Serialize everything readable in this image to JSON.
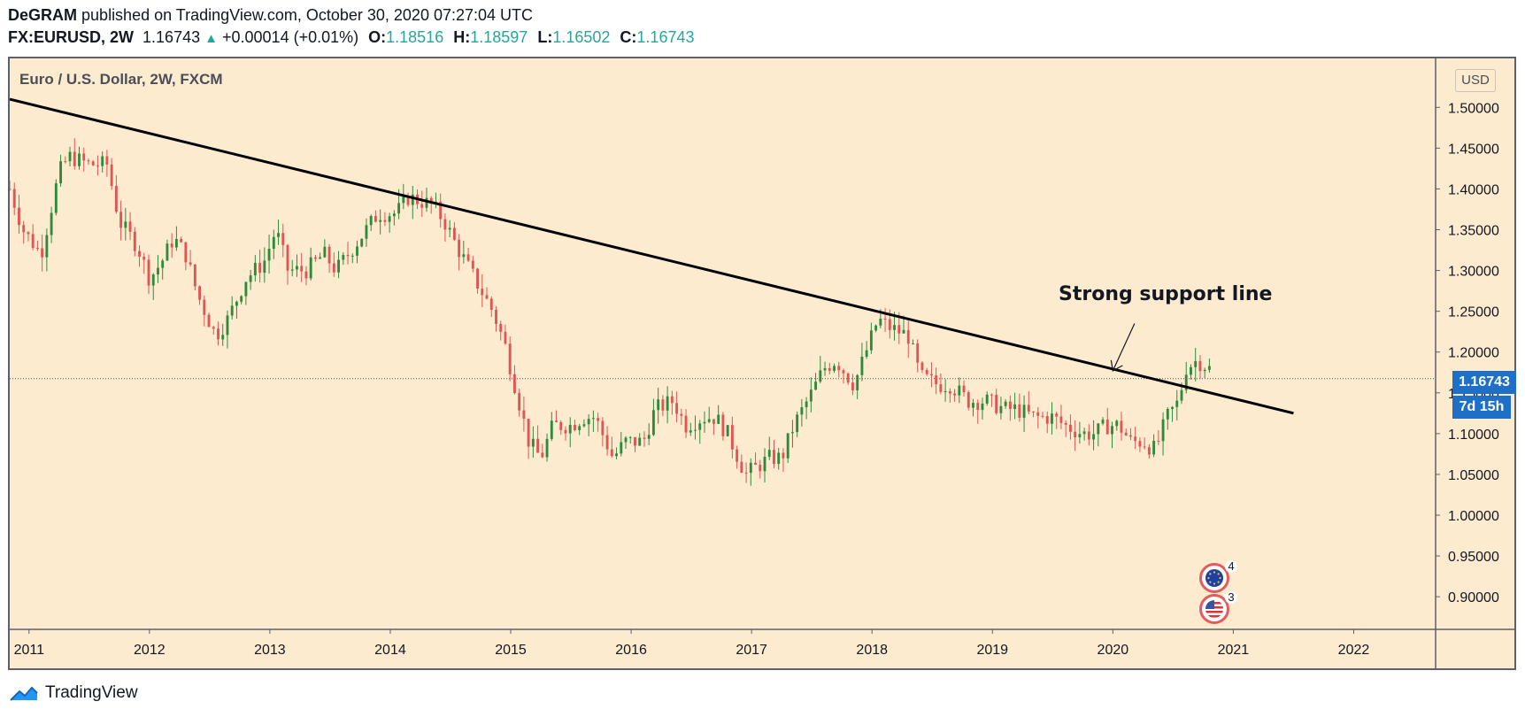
{
  "header": {
    "author": "DeGRAM",
    "published_text": "published on TradingView.com, October 30, 2020 07:27:04 UTC",
    "symbol": "FX:EURUSD, 2W",
    "last": "1.16743",
    "change": "+0.00014 (+0.01%)",
    "open_label": "O:",
    "open": "1.18516",
    "high_label": "H:",
    "high": "1.18597",
    "low_label": "L:",
    "low": "1.16502",
    "close_label": "C:",
    "close": "1.16743"
  },
  "plot_title": "Euro / U.S. Dollar, 2W, FXCM",
  "currency_badge": "USD",
  "price_badge": "1.16743",
  "countdown_badge": "7d 15h",
  "annotation": "Strong support line",
  "events": [
    {
      "icon": "eu-flag-icon",
      "count": "4"
    },
    {
      "icon": "us-flag-icon",
      "count": "3"
    }
  ],
  "footer_brand": "TradingView",
  "colors": {
    "background": "#fdebd0",
    "up": "#2e8b3e",
    "down": "#e05454",
    "badge": "#1e6fc8",
    "trendline": "#000000"
  },
  "chart_data": {
    "type": "candlestick",
    "title": "Euro / U.S. Dollar, 2W, FXCM",
    "x_tick_labels": [
      "2011",
      "2012",
      "2013",
      "2014",
      "2015",
      "2016",
      "2017",
      "2018",
      "2019",
      "2020",
      "2021",
      "2022"
    ],
    "y_tick_labels": [
      "0.90000",
      "0.95000",
      "1.00000",
      "1.05000",
      "1.10000",
      "1.15000",
      "1.20000",
      "1.25000",
      "1.30000",
      "1.35000",
      "1.40000",
      "1.45000",
      "1.50000"
    ],
    "ylim": [
      0.86,
      1.56
    ],
    "xlim": [
      2010.84,
      2022.68
    ],
    "axis_side": "right",
    "current_price_line": 1.16743,
    "path_anchors": [
      [
        2010.84,
        1.4
      ],
      [
        2010.95,
        1.35
      ],
      [
        2011.1,
        1.32
      ],
      [
        2011.25,
        1.42
      ],
      [
        2011.33,
        1.44
      ],
      [
        2011.5,
        1.43
      ],
      [
        2011.65,
        1.43
      ],
      [
        2011.75,
        1.36
      ],
      [
        2011.9,
        1.33
      ],
      [
        2012.0,
        1.29
      ],
      [
        2012.1,
        1.31
      ],
      [
        2012.2,
        1.34
      ],
      [
        2012.3,
        1.32
      ],
      [
        2012.4,
        1.27
      ],
      [
        2012.55,
        1.22
      ],
      [
        2012.65,
        1.24
      ],
      [
        2012.8,
        1.29
      ],
      [
        2012.95,
        1.31
      ],
      [
        2013.05,
        1.35
      ],
      [
        2013.15,
        1.3
      ],
      [
        2013.3,
        1.3
      ],
      [
        2013.45,
        1.32
      ],
      [
        2013.55,
        1.3
      ],
      [
        2013.7,
        1.33
      ],
      [
        2013.9,
        1.37
      ],
      [
        2014.05,
        1.37
      ],
      [
        2014.15,
        1.39
      ],
      [
        2014.35,
        1.38
      ],
      [
        2014.45,
        1.36
      ],
      [
        2014.55,
        1.33
      ],
      [
        2014.7,
        1.29
      ],
      [
        2014.85,
        1.25
      ],
      [
        2014.95,
        1.21
      ],
      [
        2015.05,
        1.15
      ],
      [
        2015.15,
        1.09
      ],
      [
        2015.25,
        1.07
      ],
      [
        2015.35,
        1.11
      ],
      [
        2015.5,
        1.11
      ],
      [
        2015.6,
        1.12
      ],
      [
        2015.7,
        1.12
      ],
      [
        2015.85,
        1.07
      ],
      [
        2015.95,
        1.09
      ],
      [
        2016.1,
        1.09
      ],
      [
        2016.2,
        1.13
      ],
      [
        2016.35,
        1.14
      ],
      [
        2016.45,
        1.11
      ],
      [
        2016.6,
        1.12
      ],
      [
        2016.7,
        1.12
      ],
      [
        2016.8,
        1.1
      ],
      [
        2016.95,
        1.05
      ],
      [
        2017.05,
        1.06
      ],
      [
        2017.15,
        1.07
      ],
      [
        2017.25,
        1.07
      ],
      [
        2017.35,
        1.11
      ],
      [
        2017.5,
        1.15
      ],
      [
        2017.6,
        1.18
      ],
      [
        2017.7,
        1.19
      ],
      [
        2017.85,
        1.16
      ],
      [
        2017.95,
        1.2
      ],
      [
        2018.05,
        1.24
      ],
      [
        2018.15,
        1.23
      ],
      [
        2018.3,
        1.22
      ],
      [
        2018.4,
        1.17
      ],
      [
        2018.55,
        1.16
      ],
      [
        2018.65,
        1.16
      ],
      [
        2018.8,
        1.14
      ],
      [
        2018.95,
        1.14
      ],
      [
        2019.1,
        1.13
      ],
      [
        2019.2,
        1.13
      ],
      [
        2019.35,
        1.12
      ],
      [
        2019.5,
        1.12
      ],
      [
        2019.6,
        1.11
      ],
      [
        2019.75,
        1.1
      ],
      [
        2019.85,
        1.1
      ],
      [
        2019.95,
        1.11
      ],
      [
        2020.05,
        1.11
      ],
      [
        2020.15,
        1.09
      ],
      [
        2020.25,
        1.09
      ],
      [
        2020.35,
        1.08
      ],
      [
        2020.45,
        1.12
      ],
      [
        2020.55,
        1.14
      ],
      [
        2020.6,
        1.18
      ],
      [
        2020.7,
        1.19
      ],
      [
        2020.8,
        1.18
      ],
      [
        2020.83,
        1.167
      ]
    ],
    "trendline": {
      "from": [
        2010.84,
        1.51
      ],
      "to": [
        2021.5,
        1.125
      ],
      "color": "#000000"
    },
    "annotation_arrow": {
      "from": [
        2020.18,
        1.235
      ],
      "to": [
        2020.0,
        1.177
      ]
    }
  }
}
